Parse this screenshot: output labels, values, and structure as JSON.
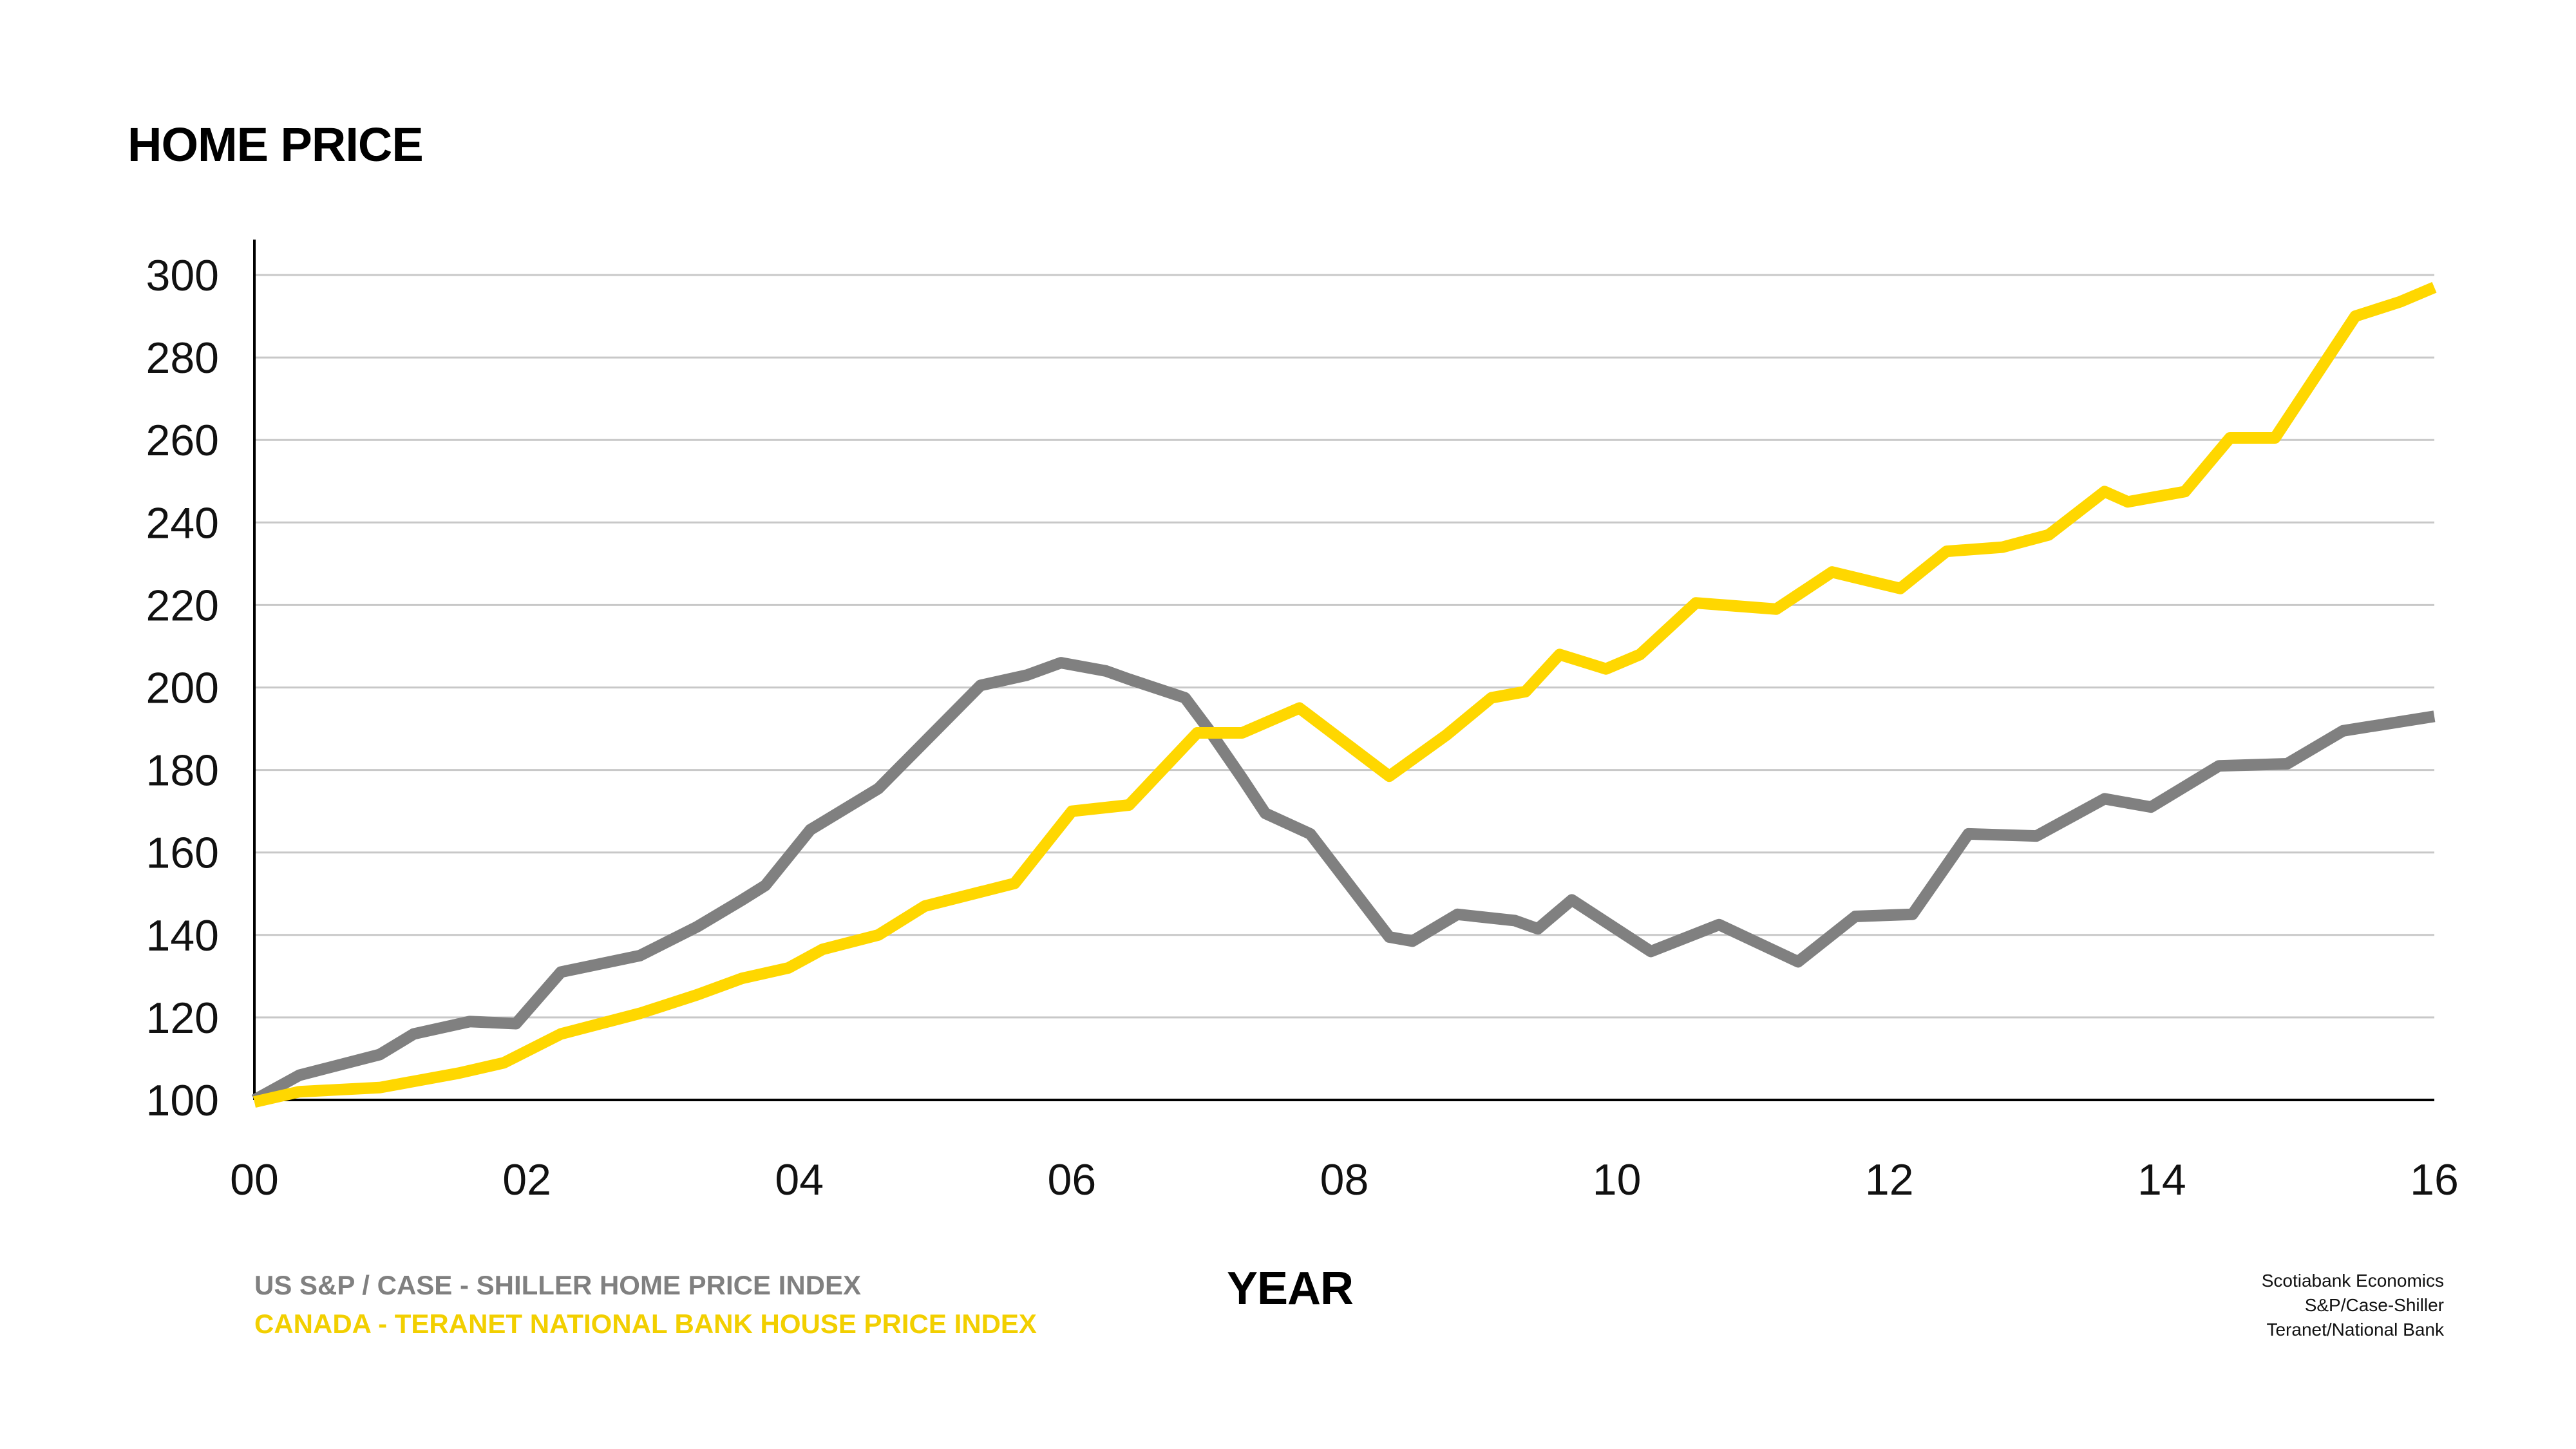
{
  "title": "HOME PRICE",
  "colors": {
    "us": "#808080",
    "canada": "#FFD700",
    "grid": "#c8c8c8",
    "axis": "#000000"
  },
  "chart_data": {
    "type": "line",
    "title": "HOME PRICE",
    "xlabel": "YEAR",
    "ylabel": "",
    "x_ticks": [
      "00",
      "02",
      "04",
      "06",
      "08",
      "10",
      "12",
      "14",
      "16"
    ],
    "y_ticks": [
      "100",
      "120",
      "140",
      "160",
      "180",
      "200",
      "220",
      "240",
      "260",
      "280",
      "300"
    ],
    "xlim": [
      2000,
      2016
    ],
    "ylim": [
      100,
      300
    ],
    "grid": "horizontal",
    "legend": "bottom-left",
    "series": [
      {
        "name": "US S&P / CASE - SHILLER HOME PRICE INDEX",
        "color": "#808080",
        "points": [
          [
            2000.0,
            100
          ],
          [
            2000.33,
            106
          ],
          [
            2000.92,
            111
          ],
          [
            2001.17,
            116
          ],
          [
            2001.58,
            119
          ],
          [
            2001.92,
            118.5
          ],
          [
            2002.25,
            131
          ],
          [
            2002.83,
            135
          ],
          [
            2003.25,
            142
          ],
          [
            2003.58,
            148.5
          ],
          [
            2003.75,
            152
          ],
          [
            2004.08,
            165.5
          ],
          [
            2004.58,
            175.5
          ],
          [
            2005.0,
            189.5
          ],
          [
            2005.33,
            200.5
          ],
          [
            2005.67,
            203
          ],
          [
            2005.92,
            206
          ],
          [
            2006.25,
            204
          ],
          [
            2006.42,
            202
          ],
          [
            2006.83,
            197.5
          ],
          [
            2007.0,
            190
          ],
          [
            2007.25,
            178
          ],
          [
            2007.42,
            169.5
          ],
          [
            2007.75,
            164.5
          ],
          [
            2008.33,
            139.5
          ],
          [
            2008.5,
            138.5
          ],
          [
            2008.83,
            145
          ],
          [
            2009.25,
            143.5
          ],
          [
            2009.42,
            141.5
          ],
          [
            2009.67,
            148.5
          ],
          [
            2010.25,
            136
          ],
          [
            2010.75,
            142.5
          ],
          [
            2011.33,
            133.5
          ],
          [
            2011.75,
            144.5
          ],
          [
            2012.17,
            145
          ],
          [
            2012.58,
            164.5
          ],
          [
            2013.08,
            164
          ],
          [
            2013.58,
            173
          ],
          [
            2013.92,
            171
          ],
          [
            2014.42,
            181
          ],
          [
            2014.92,
            181.5
          ],
          [
            2015.33,
            189.5
          ],
          [
            2016.0,
            193
          ]
        ]
      },
      {
        "name": "CANADA - TERANET NATIONAL BANK HOUSE PRICE INDEX",
        "color": "#FFD700",
        "points": [
          [
            2000.0,
            99.5
          ],
          [
            2000.33,
            102
          ],
          [
            2000.92,
            103
          ],
          [
            2001.5,
            106.5
          ],
          [
            2001.83,
            109
          ],
          [
            2002.25,
            116
          ],
          [
            2002.83,
            121
          ],
          [
            2003.25,
            125.5
          ],
          [
            2003.58,
            129.5
          ],
          [
            2003.92,
            132
          ],
          [
            2004.17,
            136.5
          ],
          [
            2004.58,
            140
          ],
          [
            2004.92,
            147
          ],
          [
            2005.58,
            152.5
          ],
          [
            2006.0,
            170
          ],
          [
            2006.42,
            171.5
          ],
          [
            2006.92,
            189
          ],
          [
            2007.25,
            189
          ],
          [
            2007.67,
            195
          ],
          [
            2008.33,
            178.5
          ],
          [
            2008.75,
            188.5
          ],
          [
            2009.08,
            197.5
          ],
          [
            2009.33,
            199
          ],
          [
            2009.58,
            208
          ],
          [
            2009.92,
            204.5
          ],
          [
            2010.17,
            208
          ],
          [
            2010.58,
            220.5
          ],
          [
            2011.17,
            219
          ],
          [
            2011.58,
            228
          ],
          [
            2012.08,
            224
          ],
          [
            2012.42,
            233
          ],
          [
            2012.83,
            234
          ],
          [
            2013.17,
            237
          ],
          [
            2013.58,
            247.5
          ],
          [
            2013.75,
            245
          ],
          [
            2014.17,
            247.5
          ],
          [
            2014.5,
            260.5
          ],
          [
            2014.83,
            260.5
          ],
          [
            2015.42,
            290
          ],
          [
            2015.75,
            293.5
          ],
          [
            2016.0,
            297
          ]
        ]
      }
    ]
  },
  "legend": {
    "us_label": "US S&P / CASE - SHILLER HOME PRICE INDEX",
    "canada_label": "CANADA - TERANET NATIONAL BANK HOUSE PRICE INDEX"
  },
  "sources": [
    "Scotiabank Economics",
    "S&P/Case-Shiller",
    "Teranet/National Bank"
  ]
}
